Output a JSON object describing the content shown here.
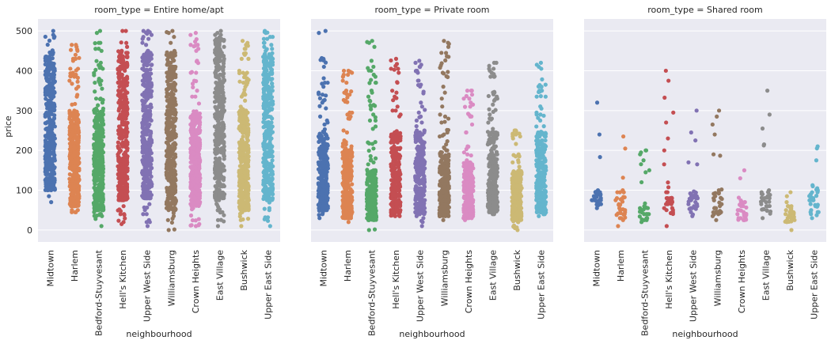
{
  "chart_data": {
    "type": "scatter",
    "subtype": "strip (categorical scatter), faceted by room_type",
    "xlabel": "neighbourhood",
    "ylabel": "price",
    "ylim": [
      -30,
      530
    ],
    "yticks": [
      0,
      100,
      200,
      300,
      400,
      500
    ],
    "grid": true,
    "categories": [
      "Midtown",
      "Harlem",
      "Bedford-Stuyvesant",
      "Hell's Kitchen",
      "Upper West Side",
      "Williamsburg",
      "Crown Heights",
      "East Village",
      "Bushwick",
      "Upper East Side"
    ],
    "colors": [
      "#4c72b0",
      "#dd8452",
      "#55a868",
      "#c44e52",
      "#8172b3",
      "#937860",
      "#da8bc3",
      "#8c8c8c",
      "#ccb974",
      "#64b5cd"
    ],
    "facets": [
      {
        "title": "room_type = Entire home/apt",
        "ranges": [
          {
            "min": 70,
            "max": 500,
            "dense_min": 100,
            "dense_max": 450
          },
          {
            "min": 45,
            "max": 465,
            "dense_min": 60,
            "dense_max": 300
          },
          {
            "min": 10,
            "max": 500,
            "dense_min": 50,
            "dense_max": 300
          },
          {
            "min": 15,
            "max": 500,
            "dense_min": 75,
            "dense_max": 450
          },
          {
            "min": 10,
            "max": 500,
            "dense_min": 80,
            "dense_max": 450
          },
          {
            "min": 0,
            "max": 500,
            "dense_min": 50,
            "dense_max": 450
          },
          {
            "min": 10,
            "max": 495,
            "dense_min": 60,
            "dense_max": 300
          },
          {
            "min": 10,
            "max": 500,
            "dense_min": 80,
            "dense_max": 480
          },
          {
            "min": 10,
            "max": 475,
            "dense_min": 50,
            "dense_max": 300
          },
          {
            "min": 10,
            "max": 500,
            "dense_min": 75,
            "dense_max": 450
          }
        ]
      },
      {
        "title": "room_type = Private room",
        "ranges": [
          {
            "min": 30,
            "max": 500,
            "dense_min": 50,
            "dense_max": 250
          },
          {
            "min": 20,
            "max": 400,
            "dense_min": 30,
            "dense_max": 200
          },
          {
            "min": 0,
            "max": 475,
            "dense_min": 25,
            "dense_max": 150
          },
          {
            "min": 35,
            "max": 430,
            "dense_min": 40,
            "dense_max": 250
          },
          {
            "min": 10,
            "max": 425,
            "dense_min": 40,
            "dense_max": 250
          },
          {
            "min": 25,
            "max": 475,
            "dense_min": 35,
            "dense_max": 200
          },
          {
            "min": 25,
            "max": 350,
            "dense_min": 30,
            "dense_max": 170
          },
          {
            "min": 40,
            "max": 420,
            "dense_min": 45,
            "dense_max": 250
          },
          {
            "min": 0,
            "max": 250,
            "dense_min": 25,
            "dense_max": 150
          },
          {
            "min": 35,
            "max": 420,
            "dense_min": 40,
            "dense_max": 250
          }
        ]
      },
      {
        "title": "room_type = Shared room",
        "ranges": [
          {
            "min": 55,
            "max": 320,
            "dense_min": 60,
            "dense_max": 100
          },
          {
            "min": 10,
            "max": 235,
            "dense_min": 25,
            "dense_max": 100
          },
          {
            "min": 20,
            "max": 200,
            "dense_min": 25,
            "dense_max": 60
          },
          {
            "min": 10,
            "max": 400,
            "dense_min": 40,
            "dense_max": 120
          },
          {
            "min": 35,
            "max": 300,
            "dense_min": 45,
            "dense_max": 100
          },
          {
            "min": 25,
            "max": 300,
            "dense_min": 30,
            "dense_max": 100
          },
          {
            "min": 25,
            "max": 150,
            "dense_min": 25,
            "dense_max": 75
          },
          {
            "min": 30,
            "max": 350,
            "dense_min": 40,
            "dense_max": 100
          },
          {
            "min": 0,
            "max": 95,
            "dense_min": 20,
            "dense_max": 60
          },
          {
            "min": 30,
            "max": 210,
            "dense_min": 35,
            "dense_max": 120
          }
        ]
      }
    ]
  }
}
